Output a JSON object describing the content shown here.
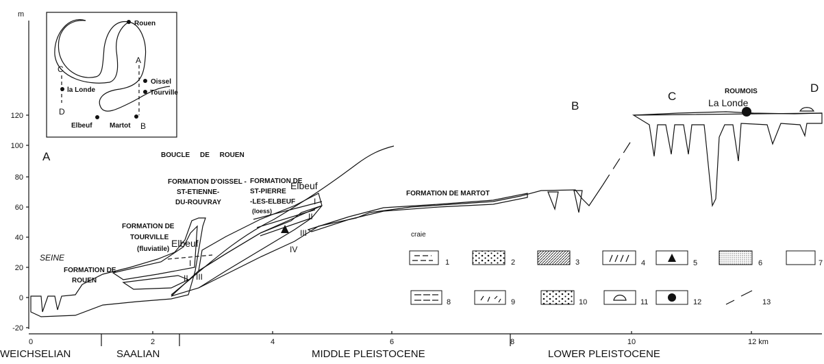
{
  "axis": {
    "y_unit": "m",
    "y_ticks": [
      "120",
      "100",
      "80",
      "60",
      "40",
      "20",
      "0",
      "-20"
    ],
    "x_ticks": [
      "0",
      "2",
      "4",
      "6",
      "8",
      "10",
      "12 km"
    ]
  },
  "periods": [
    "WEICHSELIAN",
    "SAALIAN",
    "MIDDLE PLEISTOCENE",
    "LOWER PLEISTOCENE"
  ],
  "inset": {
    "labels": [
      "Rouen",
      "C",
      "A",
      "Oissel",
      "la Londe",
      "Tourville",
      "D",
      "Elbeuf",
      "Martot",
      "B"
    ]
  },
  "section": {
    "A": "A",
    "B": "B",
    "C": "C",
    "D": "D",
    "roumois": "ROUMOIS",
    "la_londe": "La Londe",
    "boucle": "BOUCLE DE ROUEN",
    "oissel": [
      "FORMATION D'OISSEL -",
      "ST-ETIENNE-",
      "DU-ROUVRAY"
    ],
    "st_pierre": [
      "FORMATION DE",
      "ST-PIERRE",
      "-LES-ELBEUF",
      "(loess)"
    ],
    "tourville": [
      "FORMATION DE",
      "TOURVILLE",
      "(fluviatile)"
    ],
    "seine": "SEINE",
    "rouen": [
      "FORMATION DE",
      "ROUEN"
    ],
    "elbeuf_upper": "Elbeuf",
    "elbeuf_lower": "Elbeuf",
    "martot": "FORMATION  DE  MARTOT",
    "craie": "craie",
    "loess_units": [
      "I",
      "II",
      "III",
      "IV"
    ],
    "terrace_units": [
      "I",
      "II",
      "III"
    ]
  },
  "legend": [
    "1",
    "2",
    "3",
    "4",
    "5",
    "6",
    "7",
    "8",
    "9",
    "10",
    "11",
    "12",
    "13"
  ]
}
